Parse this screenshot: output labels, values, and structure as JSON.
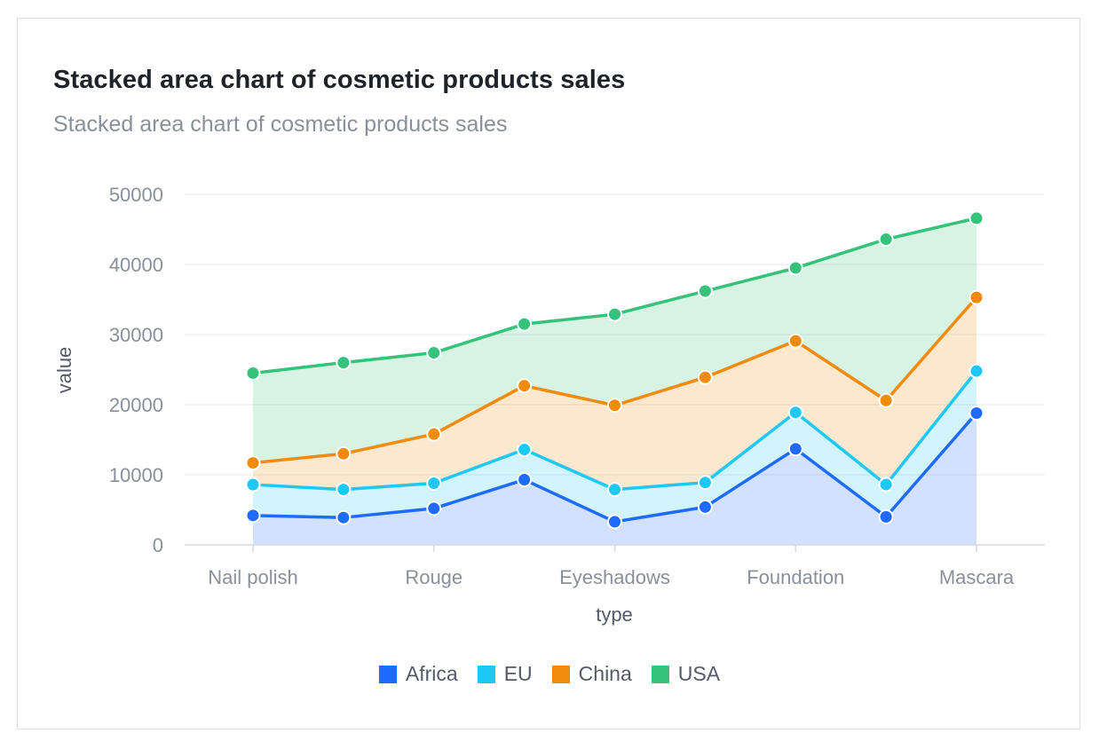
{
  "title": "Stacked area chart of cosmetic products sales",
  "subtitle": "Stacked area chart of cosmetic products sales",
  "chart_data": {
    "type": "area",
    "stacked": true,
    "title": "Stacked area chart of cosmetic products sales",
    "subtitle": "Stacked area chart of cosmetic products sales",
    "xlabel": "type",
    "ylabel": "value",
    "ylim": [
      0,
      50000
    ],
    "yticks": [
      0,
      10000,
      20000,
      30000,
      40000,
      50000
    ],
    "categories": [
      "Nail polish",
      "",
      "Rouge",
      "",
      "Eyeshadows",
      "",
      "Foundation",
      "",
      "Mascara"
    ],
    "x_tick_labels": [
      "Nail polish",
      "Rouge",
      "Eyeshadows",
      "Foundation",
      "Mascara"
    ],
    "grid": true,
    "legend_position": "bottom",
    "series": [
      {
        "name": "Africa",
        "color": "#1e6bff",
        "values": [
          4200,
          3900,
          5200,
          9300,
          3300,
          5400,
          13700,
          4000,
          18800
        ]
      },
      {
        "name": "EU",
        "color": "#1ec8f5",
        "values": [
          4400,
          4000,
          3600,
          4300,
          4600,
          3500,
          5200,
          4600,
          6000
        ]
      },
      {
        "name": "China",
        "color": "#f28a0c",
        "values": [
          3100,
          5100,
          7000,
          9100,
          12000,
          15000,
          10200,
          12000,
          10500
        ]
      },
      {
        "name": "USA",
        "color": "#35c27a",
        "values": [
          12800,
          13000,
          11600,
          8800,
          13000,
          12300,
          10400,
          23000,
          11300
        ]
      }
    ]
  }
}
